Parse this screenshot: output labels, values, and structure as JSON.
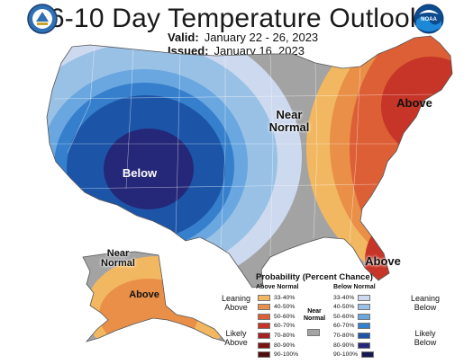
{
  "header": {
    "title": "6-10 Day Temperature Outlook",
    "valid_label": "Valid:",
    "valid_value": "January 22 - 26, 2023",
    "issued_label": "Issued:",
    "issued_value": "January 16, 2023"
  },
  "logos": {
    "left": "doc-seal-icon",
    "right": "noaa-logo-icon"
  },
  "map_labels": {
    "below": "Below",
    "near_normal_central": "Near Normal",
    "above_northeast": "Above",
    "above_florida": "Above",
    "alaska_near_normal": "Near Normal",
    "alaska_above": "Above"
  },
  "colors": {
    "above_33_40": "#f2b761",
    "above_40_50": "#e98f48",
    "above_50_60": "#dd5f36",
    "above_60_70": "#c63527",
    "above_70_80": "#a52123",
    "above_80_90": "#7b1313",
    "above_90_100": "#4f0c0c",
    "near_normal": "#a3a3a3",
    "below_33_40": "#cdd9ef",
    "below_40_50": "#99c1e6",
    "below_50_60": "#6aa7e0",
    "below_60_70": "#357fcc",
    "below_70_80": "#1c55a8",
    "below_80_90": "#252778",
    "below_90_100": "#16184f"
  },
  "legend": {
    "title": "Probability (Percent Chance)",
    "above_header": "Above Normal",
    "below_header": "Below Normal",
    "near_normal": "Near Normal",
    "leaning_above": "Leaning Above",
    "likely_above": "Likely Above",
    "leaning_below": "Leaning Below",
    "likely_below": "Likely Below",
    "above": [
      {
        "label": "33-40%",
        "color": "#f2b761"
      },
      {
        "label": "40-50%",
        "color": "#e98f48"
      },
      {
        "label": "50-60%",
        "color": "#dd5f36"
      },
      {
        "label": "60-70%",
        "color": "#c63527"
      },
      {
        "label": "70-80%",
        "color": "#a52123"
      },
      {
        "label": "80-90%",
        "color": "#7b1313"
      },
      {
        "label": "90-100%",
        "color": "#4f0c0c"
      }
    ],
    "below": [
      {
        "label": "33-40%",
        "color": "#cdd9ef"
      },
      {
        "label": "40-50%",
        "color": "#99c1e6"
      },
      {
        "label": "50-60%",
        "color": "#6aa7e0"
      },
      {
        "label": "60-70%",
        "color": "#357fcc"
      },
      {
        "label": "70-80%",
        "color": "#1c55a8"
      },
      {
        "label": "80-90%",
        "color": "#252778"
      },
      {
        "label": "90-100%",
        "color": "#16184f"
      }
    ]
  }
}
